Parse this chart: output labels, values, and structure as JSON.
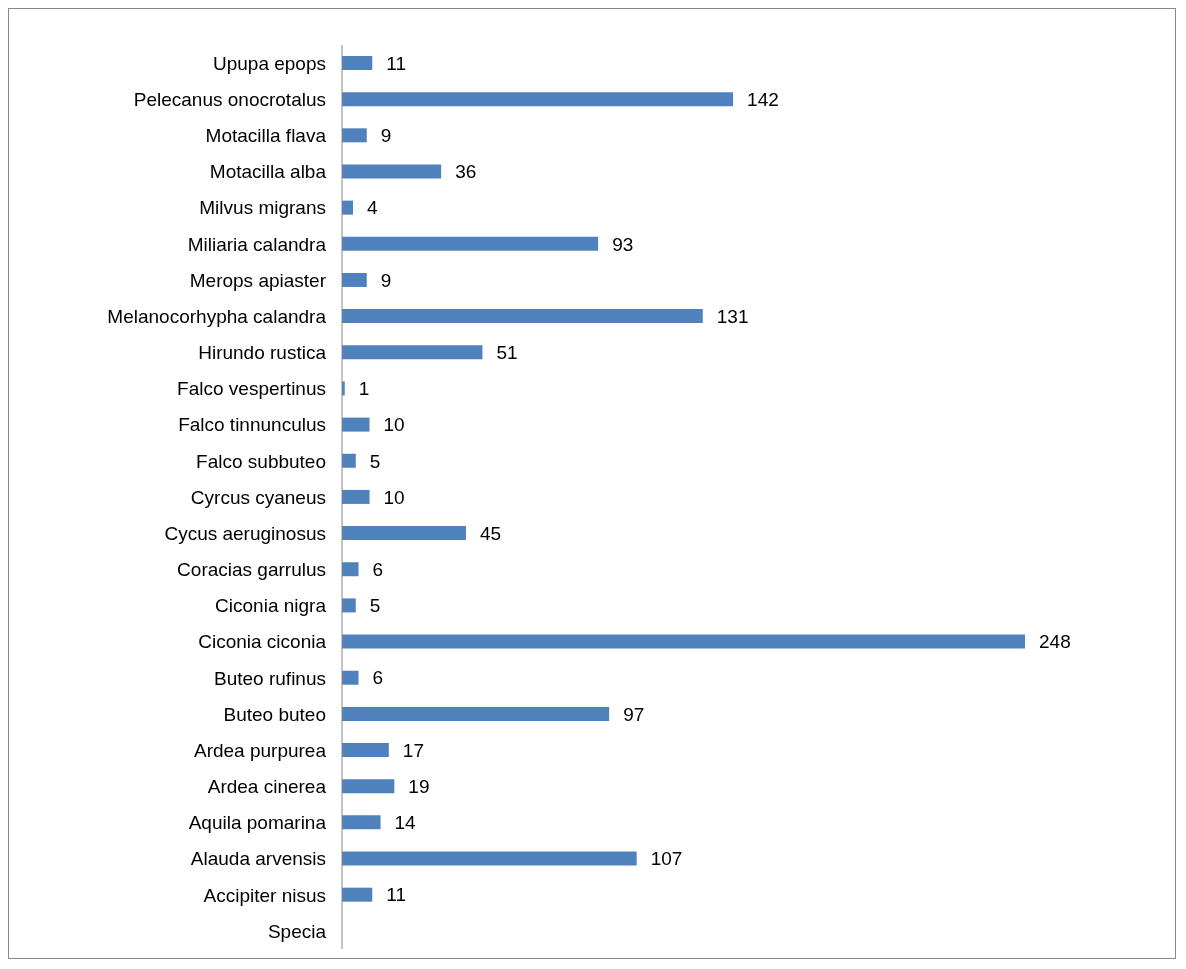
{
  "chart_data": {
    "type": "bar",
    "orientation": "horizontal",
    "data_labels": true,
    "color": "#4f81bd",
    "categories": [
      "Upupa epops",
      "Pelecanus onocrotalus",
      "Motacilla flava",
      "Motacilla alba",
      "Milvus migrans",
      "Miliaria calandra",
      "Merops apiaster",
      "Melanocorhypha calandra",
      "Hirundo rustica",
      "Falco vespertinus",
      "Falco tinnunculus",
      "Falco subbuteo",
      "Cyrcus cyaneus",
      "Cycus aeruginosus",
      "Coracias garrulus",
      "Ciconia nigra",
      "Ciconia ciconia",
      "Buteo rufinus",
      "Buteo buteo",
      "Ardea purpurea",
      "Ardea cinerea",
      "Aquila pomarina",
      "Alauda arvensis",
      "Accipiter nisus",
      "Specia"
    ],
    "values": [
      11,
      142,
      9,
      36,
      4,
      93,
      9,
      131,
      51,
      1,
      10,
      5,
      10,
      45,
      6,
      5,
      248,
      6,
      97,
      17,
      19,
      14,
      107,
      11,
      null
    ]
  }
}
